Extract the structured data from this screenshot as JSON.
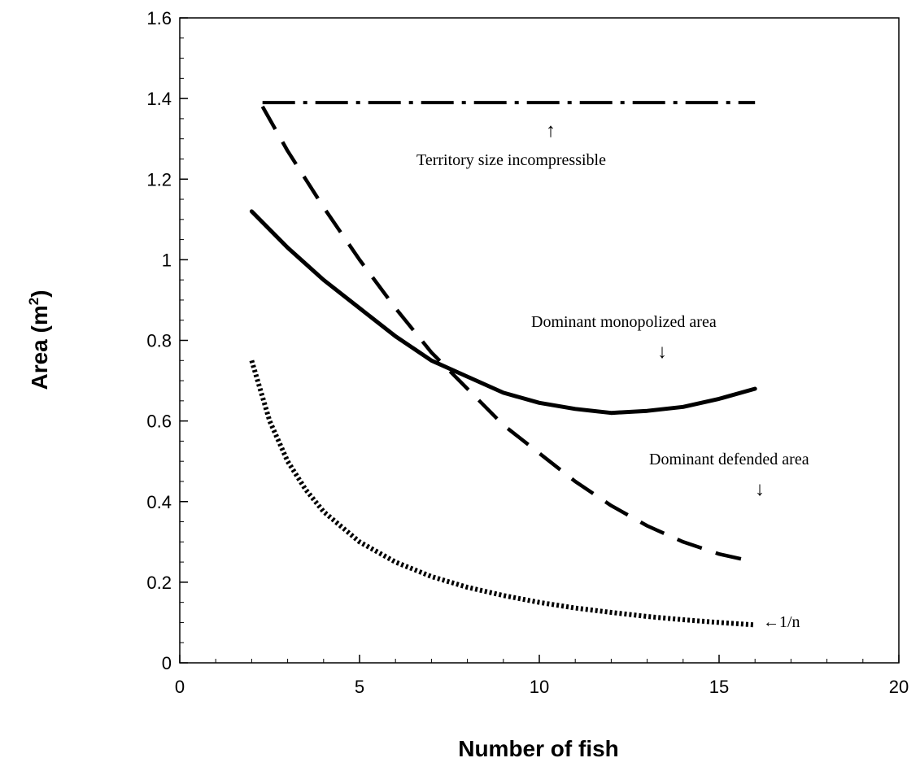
{
  "chart_data": {
    "type": "line",
    "xlabel": "Number of fish",
    "ylabel": "Area (m²)",
    "ylabel_parts": {
      "main": "Area (m",
      "sup": "2",
      "close": ")"
    },
    "xlim": [
      0,
      20
    ],
    "ylim": [
      0,
      1.6
    ],
    "x_ticks": [
      "0",
      "5",
      "10",
      "15",
      "20"
    ],
    "y_ticks": [
      "0",
      "0.2",
      "0.4",
      "0.6",
      "0.8",
      "1",
      "1.2",
      "1.4",
      "1.6"
    ],
    "grid": false,
    "legend": "none",
    "series": [
      {
        "style": "dash-dot",
        "x": [
          2.3,
          16
        ],
        "y": [
          1.39,
          1.39
        ]
      },
      {
        "style": "dashed",
        "x": [
          2.3,
          3,
          4,
          5,
          6,
          7,
          8,
          9,
          10,
          11,
          12,
          13,
          14,
          15,
          16
        ],
        "y": [
          1.38,
          1.27,
          1.13,
          1.0,
          0.88,
          0.77,
          0.68,
          0.59,
          0.52,
          0.45,
          0.39,
          0.34,
          0.3,
          0.27,
          0.25
        ]
      },
      {
        "style": "solid",
        "x": [
          2,
          3,
          4,
          5,
          6,
          7,
          8,
          9,
          10,
          11,
          12,
          13,
          14,
          15,
          16
        ],
        "y": [
          1.12,
          1.03,
          0.95,
          0.88,
          0.81,
          0.75,
          0.71,
          0.67,
          0.645,
          0.63,
          0.62,
          0.625,
          0.635,
          0.655,
          0.68
        ]
      },
      {
        "style": "dotted",
        "x": [
          2,
          2.5,
          3,
          3.5,
          4,
          5,
          6,
          7,
          8,
          9,
          10,
          11,
          12,
          13,
          14,
          15,
          16
        ],
        "y": [
          0.75,
          0.6,
          0.5,
          0.43,
          0.375,
          0.3,
          0.25,
          0.214,
          0.1875,
          0.167,
          0.15,
          0.136,
          0.125,
          0.115,
          0.107,
          0.1,
          0.094
        ]
      }
    ],
    "annotations": [
      {
        "text": "Territory size incompressible",
        "arrow": "↑"
      },
      {
        "text": "Dominant monopolized area",
        "arrow": "↓"
      },
      {
        "text": "Dominant defended area",
        "arrow": "↓"
      },
      {
        "text": "←1/n"
      }
    ]
  }
}
